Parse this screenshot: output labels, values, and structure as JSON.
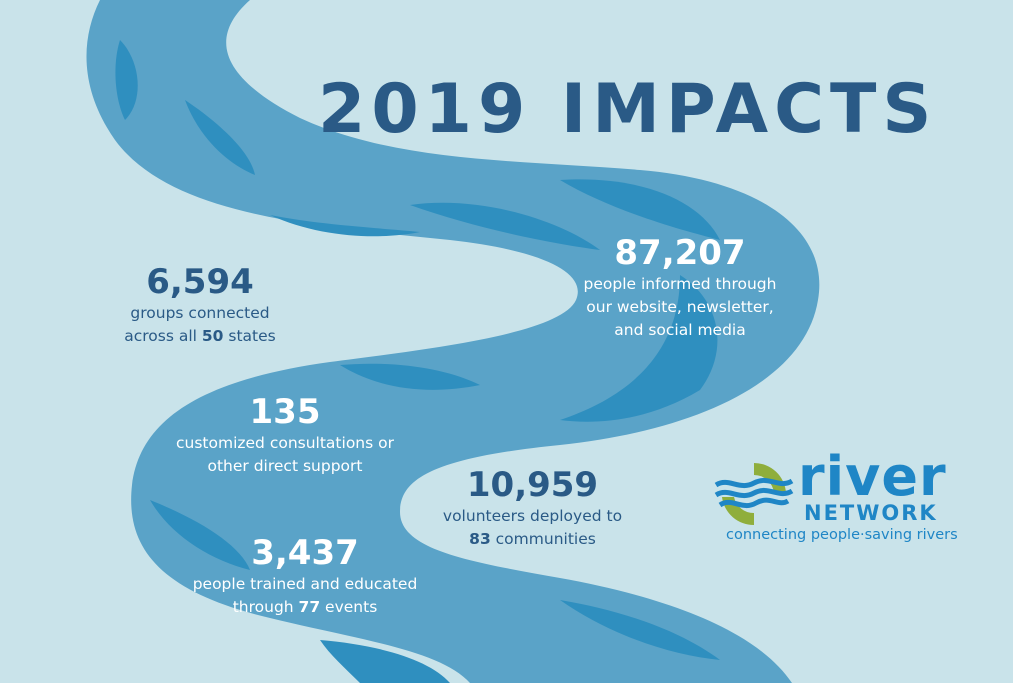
{
  "title": "2019 IMPACTS",
  "stats": {
    "groups": {
      "number": "6,594",
      "line1": "groups connected",
      "line2_pre": "across all ",
      "line2_bold": "50",
      "line2_post": " states"
    },
    "informed": {
      "number": "87,207",
      "line1": "people informed through",
      "line2": "our website, newsletter,",
      "line3": "and social media"
    },
    "consultations": {
      "number": "135",
      "line1": "customized consultations or",
      "line2": "other direct support"
    },
    "volunteers": {
      "number": "10,959",
      "line1": "volunteers deployed to",
      "line2_bold": "83",
      "line2_post": " communities"
    },
    "trained": {
      "number": "3,437",
      "line1": "people trained and educated",
      "line2_pre": "through ",
      "line2_bold": "77",
      "line2_post": " events"
    }
  },
  "logo": {
    "word": "river",
    "network": "NETWORK",
    "tagline": "connecting people·saving rivers"
  },
  "colors": {
    "background": "#c9e3ea",
    "river": "#5aa3c8",
    "river_deep": "#2f8fbf",
    "title": "#2a5a86",
    "brand_blue": "#1f86c6",
    "brand_green": "#8fae3c"
  }
}
